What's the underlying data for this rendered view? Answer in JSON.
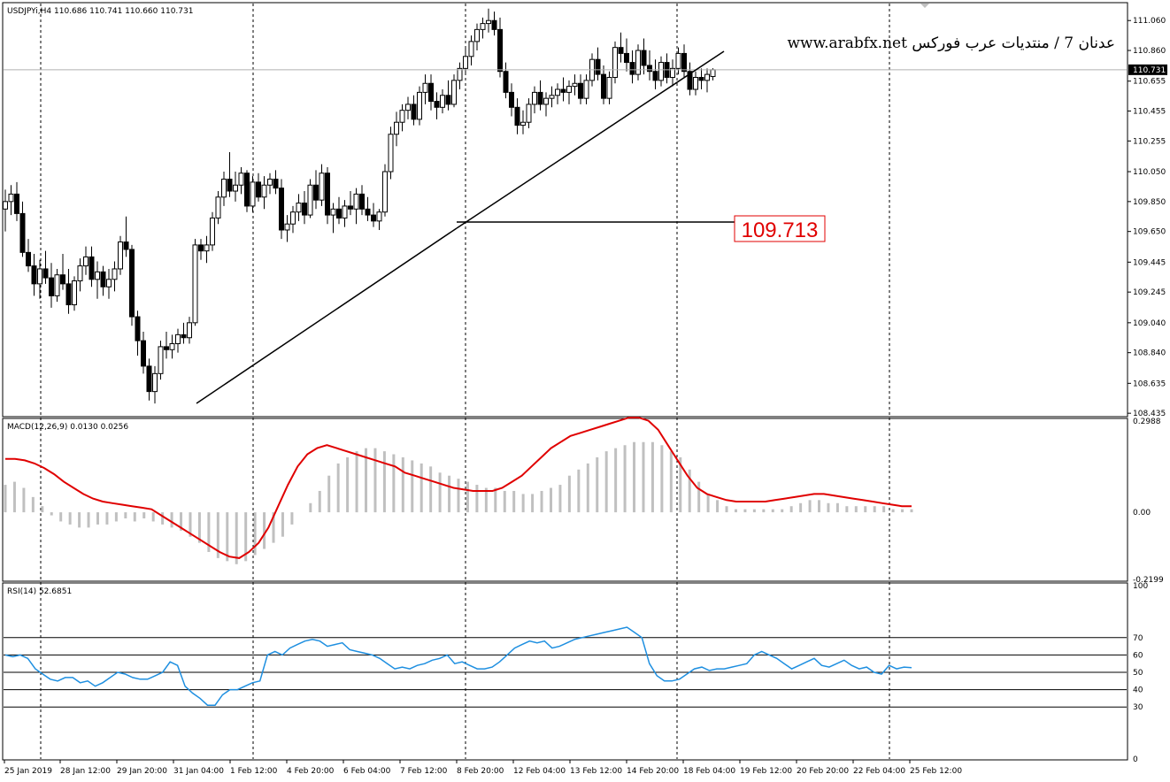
{
  "header": {
    "main": "USDJPYi,H4  110.686 110.741 110.660 110.731",
    "macd": "MACD(12,26,9) 0.0130 0.0256",
    "rsi": "RSI(14) 52.6851"
  },
  "annotation": {
    "title": "عدنان 7 / منتديات عرب فوركس www.arabfx.net",
    "level_label": "109.713"
  },
  "colors": {
    "bull": "#ffffff",
    "bear": "#000000",
    "signal": "#e00000",
    "macd_hist": "#c0c0c0",
    "rsi_line": "#1e8fe0",
    "level_box": "#e00000"
  },
  "chart_data": [
    {
      "type": "candlestick",
      "symbol": "USDJPYi",
      "timeframe": "H4",
      "ylim": [
        108.43,
        111.15
      ],
      "y_ticks": [
        "111.060",
        "110.860",
        "110.655",
        "110.455",
        "110.255",
        "110.050",
        "109.850",
        "109.650",
        "109.445",
        "109.245",
        "109.040",
        "108.840",
        "108.635",
        "108.435"
      ],
      "current_price": "110.731",
      "x_ticks": [
        "25 Jan 2019",
        "28 Jan 12:00",
        "29 Jan 20:00",
        "31 Jan 04:00",
        "1 Feb 12:00",
        "4 Feb 20:00",
        "6 Feb 04:00",
        "7 Feb 12:00",
        "8 Feb 20:00",
        "12 Feb 04:00",
        "13 Feb 12:00",
        "14 Feb 20:00",
        "18 Feb 04:00",
        "19 Feb 12:00",
        "20 Feb 20:00",
        "22 Feb 04:00",
        "25 Feb 12:00"
      ],
      "horizontal_level": 109.713,
      "ohlc": [
        [
          109.8,
          109.93,
          109.65,
          109.85
        ],
        [
          109.85,
          109.96,
          109.76,
          109.9
        ],
        [
          109.9,
          109.98,
          109.72,
          109.77
        ],
        [
          109.77,
          109.85,
          109.48,
          109.51
        ],
        [
          109.51,
          109.6,
          109.38,
          109.42
        ],
        [
          109.42,
          109.5,
          109.22,
          109.3
        ],
        [
          109.3,
          109.46,
          109.2,
          109.4
        ],
        [
          109.4,
          109.52,
          109.3,
          109.34
        ],
        [
          109.34,
          109.44,
          109.14,
          109.22
        ],
        [
          109.22,
          109.4,
          109.18,
          109.36
        ],
        [
          109.36,
          109.5,
          109.26,
          109.3
        ],
        [
          109.3,
          109.4,
          109.1,
          109.16
        ],
        [
          109.16,
          109.35,
          109.12,
          109.32
        ],
        [
          109.32,
          109.47,
          109.25,
          109.42
        ],
        [
          109.42,
          109.55,
          109.36,
          109.48
        ],
        [
          109.48,
          109.55,
          109.28,
          109.33
        ],
        [
          109.33,
          109.45,
          109.2,
          109.38
        ],
        [
          109.38,
          109.42,
          109.22,
          109.28
        ],
        [
          109.28,
          109.4,
          109.2,
          109.33
        ],
        [
          109.33,
          109.45,
          109.25,
          109.4
        ],
        [
          109.4,
          109.62,
          109.36,
          109.58
        ],
        [
          109.58,
          109.75,
          109.48,
          109.53
        ],
        [
          109.53,
          109.56,
          109.02,
          109.08
        ],
        [
          109.08,
          109.12,
          108.82,
          108.92
        ],
        [
          108.92,
          108.98,
          108.7,
          108.75
        ],
        [
          108.75,
          108.8,
          108.52,
          108.58
        ],
        [
          108.58,
          108.75,
          108.5,
          108.7
        ],
        [
          108.7,
          108.92,
          108.66,
          108.88
        ],
        [
          108.88,
          108.98,
          108.8,
          108.86
        ],
        [
          108.86,
          108.96,
          108.8,
          108.9
        ],
        [
          108.9,
          109.0,
          108.84,
          108.96
        ],
        [
          108.96,
          109.04,
          108.9,
          108.94
        ],
        [
          108.94,
          109.08,
          108.9,
          109.04
        ],
        [
          109.04,
          109.6,
          109.02,
          109.56
        ],
        [
          109.56,
          109.6,
          109.46,
          109.52
        ],
        [
          109.52,
          109.62,
          109.44,
          109.56
        ],
        [
          109.56,
          109.78,
          109.52,
          109.74
        ],
        [
          109.74,
          109.92,
          109.7,
          109.88
        ],
        [
          109.88,
          110.05,
          109.82,
          110.0
        ],
        [
          110.0,
          110.18,
          109.88,
          109.92
        ],
        [
          109.92,
          110.05,
          109.85,
          109.96
        ],
        [
          109.96,
          110.08,
          109.9,
          110.04
        ],
        [
          110.04,
          110.06,
          109.78,
          109.82
        ],
        [
          109.82,
          110.02,
          109.78,
          109.98
        ],
        [
          109.98,
          110.04,
          109.85,
          109.88
        ],
        [
          109.88,
          110.02,
          109.8,
          109.96
        ],
        [
          109.96,
          110.04,
          109.9,
          110.0
        ],
        [
          110.0,
          110.06,
          109.9,
          109.94
        ],
        [
          109.94,
          110.0,
          109.6,
          109.66
        ],
        [
          109.66,
          109.76,
          109.58,
          109.7
        ],
        [
          109.7,
          109.82,
          109.64,
          109.78
        ],
        [
          109.78,
          109.9,
          109.72,
          109.84
        ],
        [
          109.84,
          109.92,
          109.7,
          109.76
        ],
        [
          109.76,
          110.0,
          109.74,
          109.96
        ],
        [
          109.96,
          110.06,
          109.8,
          109.86
        ],
        [
          109.86,
          110.1,
          109.82,
          110.04
        ],
        [
          110.04,
          110.08,
          109.7,
          109.76
        ],
        [
          109.76,
          109.84,
          109.64,
          109.8
        ],
        [
          109.8,
          109.88,
          109.7,
          109.74
        ],
        [
          109.74,
          109.86,
          109.68,
          109.82
        ],
        [
          109.82,
          109.92,
          109.76,
          109.8
        ],
        [
          109.8,
          109.94,
          109.7,
          109.9
        ],
        [
          109.9,
          109.96,
          109.76,
          109.8
        ],
        [
          109.8,
          109.88,
          109.72,
          109.76
        ],
        [
          109.76,
          109.84,
          109.68,
          109.72
        ],
        [
          109.72,
          109.8,
          109.66,
          109.78
        ],
        [
          109.78,
          110.1,
          109.75,
          110.05
        ],
        [
          110.05,
          110.35,
          110.0,
          110.3
        ],
        [
          110.3,
          110.45,
          110.22,
          110.38
        ],
        [
          110.38,
          110.5,
          110.32,
          110.46
        ],
        [
          110.46,
          110.55,
          110.4,
          110.5
        ],
        [
          110.5,
          110.56,
          110.36,
          110.4
        ],
        [
          110.4,
          110.62,
          110.36,
          110.58
        ],
        [
          110.58,
          110.7,
          110.5,
          110.64
        ],
        [
          110.64,
          110.7,
          110.46,
          110.52
        ],
        [
          110.52,
          110.58,
          110.4,
          110.48
        ],
        [
          110.48,
          110.6,
          110.44,
          110.56
        ],
        [
          110.56,
          110.66,
          110.46,
          110.5
        ],
        [
          110.5,
          110.7,
          110.48,
          110.66
        ],
        [
          110.66,
          110.78,
          110.6,
          110.74
        ],
        [
          110.74,
          110.88,
          110.7,
          110.82
        ],
        [
          110.82,
          110.96,
          110.76,
          110.92
        ],
        [
          110.92,
          111.04,
          110.86,
          111.0
        ],
        [
          111.0,
          111.08,
          110.94,
          111.04
        ],
        [
          111.04,
          111.14,
          110.98,
          111.06
        ],
        [
          111.06,
          111.12,
          110.96,
          111.0
        ],
        [
          111.0,
          111.08,
          110.68,
          110.72
        ],
        [
          110.72,
          110.78,
          110.54,
          110.58
        ],
        [
          110.58,
          110.64,
          110.42,
          110.48
        ],
        [
          110.48,
          110.54,
          110.3,
          110.36
        ],
        [
          110.36,
          110.46,
          110.3,
          110.38
        ],
        [
          110.38,
          110.54,
          110.34,
          110.5
        ],
        [
          110.5,
          110.62,
          110.44,
          110.58
        ],
        [
          110.58,
          110.66,
          110.46,
          110.5
        ],
        [
          110.5,
          110.58,
          110.42,
          110.54
        ],
        [
          110.54,
          110.62,
          110.48,
          110.56
        ],
        [
          110.56,
          110.64,
          110.5,
          110.6
        ],
        [
          110.6,
          110.68,
          110.52,
          110.58
        ],
        [
          110.58,
          110.66,
          110.5,
          110.62
        ],
        [
          110.62,
          110.7,
          110.56,
          110.64
        ],
        [
          110.64,
          110.7,
          110.5,
          110.54
        ],
        [
          110.54,
          110.7,
          110.5,
          110.66
        ],
        [
          110.66,
          110.84,
          110.62,
          110.8
        ],
        [
          110.8,
          110.88,
          110.66,
          110.7
        ],
        [
          110.7,
          110.76,
          110.5,
          110.54
        ],
        [
          110.54,
          110.72,
          110.5,
          110.68
        ],
        [
          110.68,
          110.92,
          110.64,
          110.88
        ],
        [
          110.88,
          110.98,
          110.78,
          110.84
        ],
        [
          110.84,
          110.94,
          110.72,
          110.78
        ],
        [
          110.78,
          110.86,
          110.64,
          110.7
        ],
        [
          110.7,
          110.9,
          110.66,
          110.86
        ],
        [
          110.86,
          110.94,
          110.7,
          110.76
        ],
        [
          110.76,
          110.86,
          110.66,
          110.72
        ],
        [
          110.72,
          110.8,
          110.6,
          110.66
        ],
        [
          110.66,
          110.82,
          110.62,
          110.78
        ],
        [
          110.78,
          110.84,
          110.64,
          110.68
        ],
        [
          110.68,
          110.8,
          110.62,
          110.74
        ],
        [
          110.74,
          110.88,
          110.7,
          110.84
        ],
        [
          110.84,
          110.9,
          110.68,
          110.72
        ],
        [
          110.72,
          110.78,
          110.56,
          110.6
        ],
        [
          110.6,
          110.72,
          110.56,
          110.68
        ],
        [
          110.68,
          110.74,
          110.6,
          110.66
        ],
        [
          110.66,
          110.74,
          110.58,
          110.7
        ],
        [
          110.686,
          110.741,
          110.66,
          110.731
        ]
      ]
    },
    {
      "type": "bar+line",
      "name": "MACD(12,26,9)",
      "ylim": [
        -0.2199,
        0.2988
      ],
      "y_ticks": [
        "0.2988",
        "0.00",
        "-0.2199"
      ],
      "histogram": [
        0.09,
        0.1,
        0.08,
        0.05,
        0.02,
        -0.01,
        -0.03,
        -0.04,
        -0.05,
        -0.05,
        -0.04,
        -0.04,
        -0.03,
        -0.02,
        -0.03,
        -0.02,
        -0.03,
        -0.04,
        -0.05,
        -0.06,
        -0.08,
        -0.1,
        -0.13,
        -0.15,
        -0.16,
        -0.17,
        -0.16,
        -0.14,
        -0.12,
        -0.1,
        -0.08,
        -0.04,
        0.0,
        0.03,
        0.07,
        0.12,
        0.16,
        0.18,
        0.2,
        0.21,
        0.21,
        0.2,
        0.19,
        0.18,
        0.17,
        0.16,
        0.15,
        0.13,
        0.12,
        0.11,
        0.1,
        0.09,
        0.08,
        0.08,
        0.07,
        0.07,
        0.06,
        0.06,
        0.07,
        0.08,
        0.09,
        0.12,
        0.14,
        0.16,
        0.18,
        0.2,
        0.21,
        0.22,
        0.23,
        0.23,
        0.23,
        0.22,
        0.2,
        0.18,
        0.14,
        0.1,
        0.06,
        0.04,
        0.02,
        0.01,
        0.01,
        0.01,
        0.01,
        0.01,
        0.01,
        0.02,
        0.03,
        0.04,
        0.04,
        0.03,
        0.03,
        0.02,
        0.02,
        0.02,
        0.02,
        0.02,
        0.01,
        0.01,
        0.01
      ],
      "signal": [
        0.175,
        0.175,
        0.17,
        0.16,
        0.145,
        0.125,
        0.1,
        0.08,
        0.06,
        0.045,
        0.035,
        0.03,
        0.025,
        0.02,
        0.015,
        0.01,
        -0.01,
        -0.03,
        -0.05,
        -0.07,
        -0.09,
        -0.11,
        -0.13,
        -0.145,
        -0.15,
        -0.13,
        -0.1,
        -0.05,
        0.02,
        0.09,
        0.15,
        0.19,
        0.21,
        0.22,
        0.21,
        0.2,
        0.19,
        0.18,
        0.17,
        0.16,
        0.15,
        0.13,
        0.12,
        0.11,
        0.1,
        0.09,
        0.08,
        0.075,
        0.07,
        0.07,
        0.07,
        0.08,
        0.1,
        0.12,
        0.15,
        0.18,
        0.21,
        0.23,
        0.25,
        0.26,
        0.27,
        0.28,
        0.29,
        0.3,
        0.31,
        0.31,
        0.3,
        0.27,
        0.22,
        0.17,
        0.12,
        0.08,
        0.06,
        0.05,
        0.04,
        0.035,
        0.035,
        0.035,
        0.035,
        0.04,
        0.045,
        0.05,
        0.055,
        0.06,
        0.06,
        0.055,
        0.05,
        0.045,
        0.04,
        0.035,
        0.03,
        0.025,
        0.02,
        0.02
      ],
      "current": [
        "0.0130",
        "0.0256"
      ]
    },
    {
      "type": "line",
      "name": "RSI(14)",
      "ylim": [
        0,
        100
      ],
      "y_ticks": [
        "100",
        "70",
        "60",
        "50",
        "40",
        "30",
        "0"
      ],
      "levels": [
        70,
        60,
        50,
        40,
        30
      ],
      "current": "52.6851",
      "values": [
        60,
        59,
        60,
        58,
        52,
        49,
        46,
        45,
        47,
        47,
        44,
        45,
        42,
        44,
        47,
        50,
        49,
        47,
        46,
        46,
        48,
        50,
        56,
        54,
        42,
        38,
        35,
        31,
        31,
        37,
        40,
        40,
        42,
        44,
        45,
        60,
        62,
        60,
        64,
        66,
        68,
        69,
        68,
        65,
        66,
        67,
        63,
        62,
        61,
        60,
        58,
        55,
        52,
        53,
        52,
        54,
        55,
        57,
        58,
        60,
        55,
        56,
        54,
        52,
        52,
        53,
        56,
        60,
        64,
        66,
        68,
        67,
        68,
        64,
        65,
        67,
        69,
        70,
        71,
        72,
        73,
        74,
        75,
        76,
        73,
        70,
        55,
        48,
        45,
        45,
        46,
        49,
        52,
        53,
        51,
        52,
        52,
        53,
        54,
        55,
        60,
        62,
        60,
        58,
        55,
        52,
        54,
        56,
        58,
        54,
        53,
        55,
        57,
        54,
        52,
        53,
        50,
        49,
        54,
        52,
        53,
        52.6851
      ]
    }
  ]
}
